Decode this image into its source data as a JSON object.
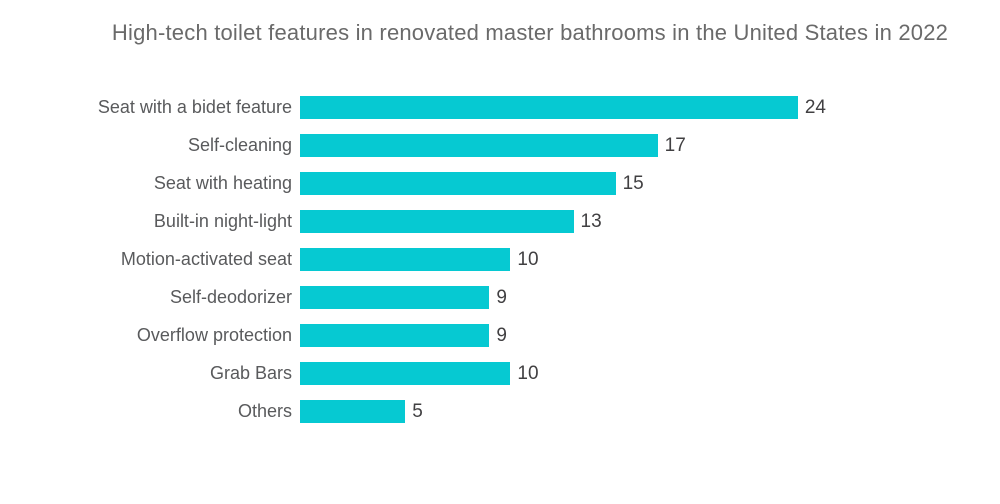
{
  "chart_data": {
    "type": "bar",
    "orientation": "horizontal",
    "title": "High-tech toilet features in renovated master bathrooms in the United States in 2022",
    "categories": [
      "Seat with a bidet feature",
      "Self-cleaning",
      "Seat with heating",
      "Built-in night-light",
      "Motion-activated seat",
      "Self-deodorizer",
      "Overflow protection",
      "Grab Bars",
      "Others"
    ],
    "values": [
      24,
      17,
      15,
      13,
      10,
      9,
      9,
      10,
      5
    ],
    "xlim": [
      0,
      25
    ],
    "value_labels": true,
    "grid": false,
    "legend": false,
    "colors": {
      "bar": "#06c9d2",
      "title_text": "#6a6a6a",
      "category_text": "#595a5c",
      "value_text": "#414042",
      "background": "#ffffff"
    }
  }
}
